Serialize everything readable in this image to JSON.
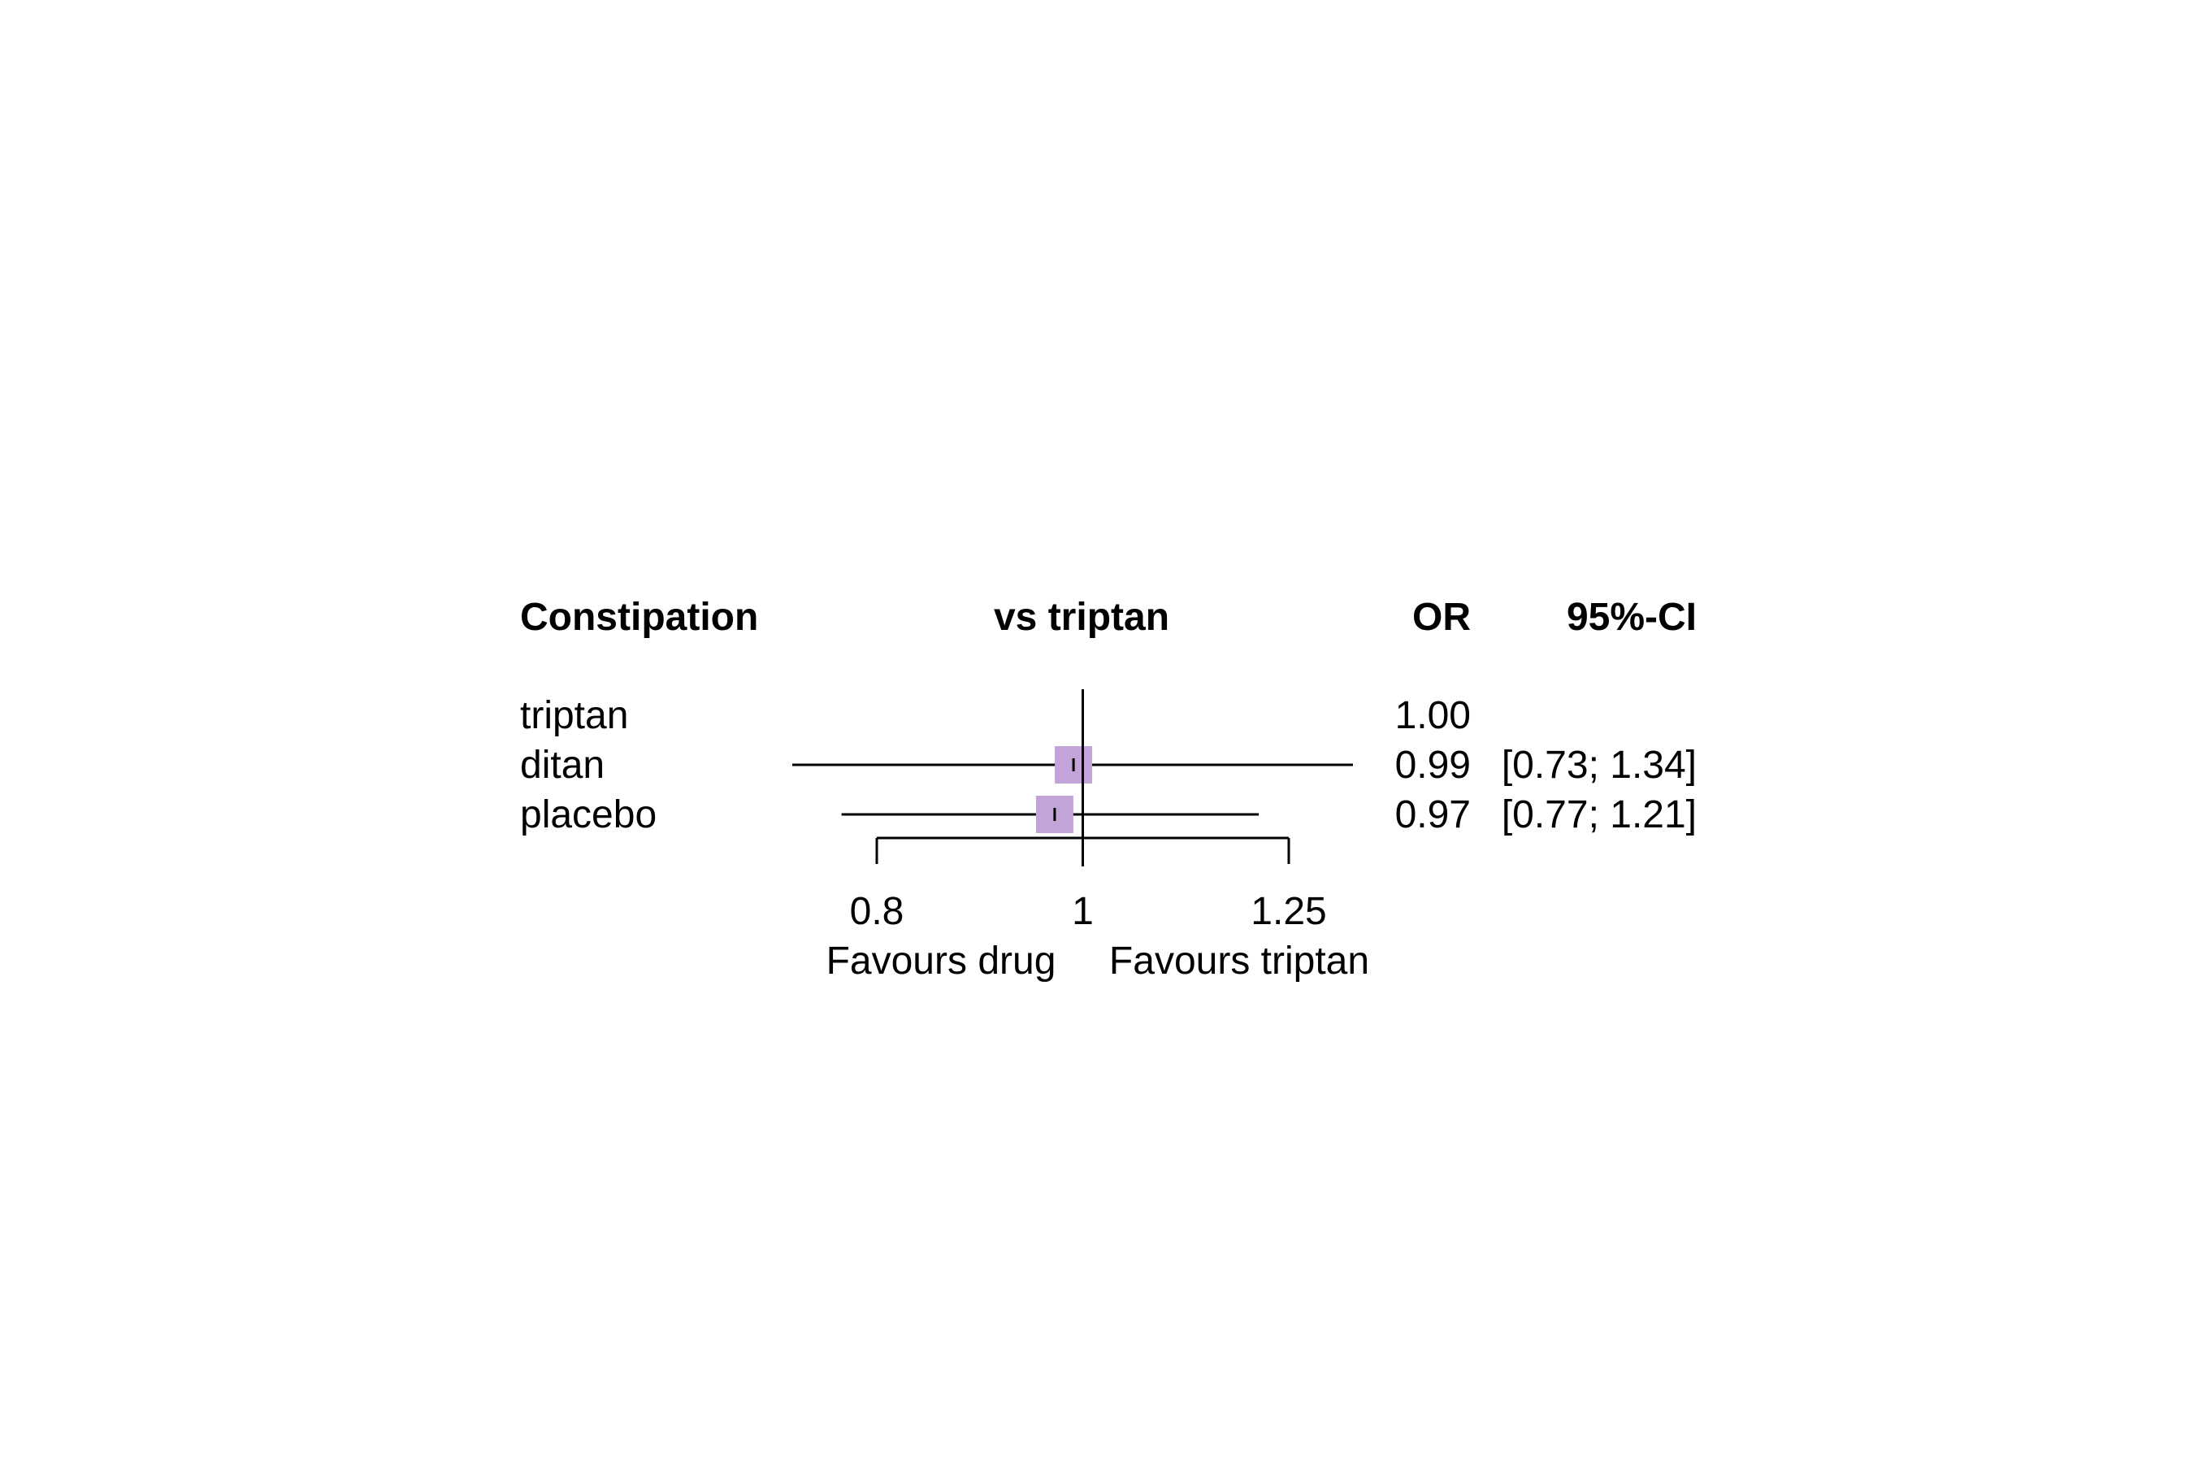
{
  "chart_data": {
    "type": "forest",
    "headers": {
      "outcome": "Constipation",
      "comparison": "vs triptan",
      "estimate": "OR",
      "ci": "95%-CI"
    },
    "rows": [
      {
        "label": "triptan",
        "or": 1.0,
        "or_text": "1.00",
        "lower": null,
        "upper": null,
        "ci_text": ""
      },
      {
        "label": "ditan",
        "or": 0.99,
        "or_text": "0.99",
        "lower": 0.73,
        "upper": 1.34,
        "ci_text": "[0.73; 1.34]"
      },
      {
        "label": "placebo",
        "or": 0.97,
        "or_text": "0.97",
        "lower": 0.77,
        "upper": 1.21,
        "ci_text": "[0.77; 1.21]"
      }
    ],
    "x_scale": "log",
    "xlim": [
      0.8,
      1.25
    ],
    "reference_line": 1,
    "ticks": [
      {
        "value": 0.8,
        "label": "0.8"
      },
      {
        "value": 1,
        "label": "1"
      },
      {
        "value": 1.25,
        "label": "1.25"
      }
    ],
    "favours_left": "Favours drug",
    "favours_right": "Favours triptan",
    "marker_color": "#c3a4d8",
    "line_color": "#000000"
  }
}
